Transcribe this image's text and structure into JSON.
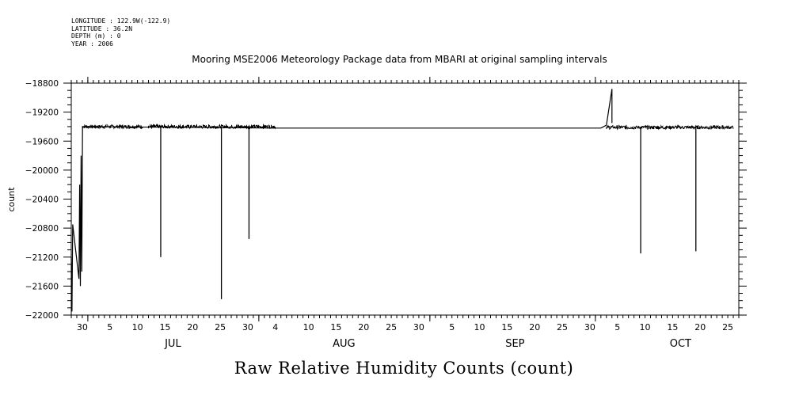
{
  "meta_lines": [
    "LONGITUDE : 122.9W(-122.9)",
    "LATITUDE : 36.2N",
    "DEPTH (m) : 0",
    "YEAR : 2006"
  ],
  "chart_data": {
    "type": "line",
    "title": "Mooring MSE2006 Meteorology Package data from MBARI at original sampling intervals",
    "xlabel": "Raw Relative Humidity Counts (count)",
    "ylabel": "count",
    "ylim": [
      -22000,
      -18800
    ],
    "yticks": [
      -18800,
      -19200,
      -19600,
      -20000,
      -20400,
      -20800,
      -21200,
      -21600,
      -22000
    ],
    "x_tick_labels": [
      {
        "date": "2006-06-30",
        "label": "30"
      },
      {
        "date": "2006-07-05",
        "label": "5"
      },
      {
        "date": "2006-07-10",
        "label": "10"
      },
      {
        "date": "2006-07-15",
        "label": "15"
      },
      {
        "date": "2006-07-20",
        "label": "20"
      },
      {
        "date": "2006-07-25",
        "label": "25"
      },
      {
        "date": "2006-07-30",
        "label": "30"
      },
      {
        "date": "2006-08-04",
        "label": "4"
      },
      {
        "date": "2006-08-10",
        "label": "10"
      },
      {
        "date": "2006-08-15",
        "label": "15"
      },
      {
        "date": "2006-08-20",
        "label": "20"
      },
      {
        "date": "2006-08-25",
        "label": "25"
      },
      {
        "date": "2006-08-30",
        "label": "30"
      },
      {
        "date": "2006-09-05",
        "label": "5"
      },
      {
        "date": "2006-09-10",
        "label": "10"
      },
      {
        "date": "2006-09-15",
        "label": "15"
      },
      {
        "date": "2006-09-20",
        "label": "20"
      },
      {
        "date": "2006-09-25",
        "label": "25"
      },
      {
        "date": "2006-09-30",
        "label": "30"
      },
      {
        "date": "2006-10-05",
        "label": "5"
      },
      {
        "date": "2006-10-10",
        "label": "10"
      },
      {
        "date": "2006-10-15",
        "label": "15"
      },
      {
        "date": "2006-10-20",
        "label": "20"
      },
      {
        "date": "2006-10-25",
        "label": "25"
      }
    ],
    "month_labels": [
      {
        "date": "2006-07-16",
        "label": "JUL"
      },
      {
        "date": "2006-08-16",
        "label": "AUG"
      },
      {
        "date": "2006-09-16",
        "label": "SEP"
      },
      {
        "date": "2006-10-16",
        "label": "OCT"
      }
    ],
    "xlim": [
      "2006-06-28",
      "2006-10-27"
    ],
    "grid": false,
    "series": [
      {
        "noisy_segments": [
          {
            "start": "2006-06-30",
            "end": "2006-07-11",
            "value": -19400,
            "noise": 25
          },
          {
            "start": "2006-07-12",
            "end": "2006-08-04",
            "value": -19400,
            "noise": 25
          },
          {
            "start": "2006-10-03",
            "end": "2006-10-26",
            "value": -19410,
            "noise": 25
          }
        ],
        "points": [
          [
            "2006-06-28",
            -21200
          ],
          [
            "2006-06-28",
            -21950
          ],
          [
            "2006-06-28",
            -20750
          ],
          [
            "2006-06-29",
            -21500
          ],
          [
            "2006-06-29",
            -20200
          ],
          [
            "2006-06-29",
            -21600
          ],
          [
            "2006-06-29",
            -19800
          ],
          [
            "2006-06-29",
            -21400
          ],
          [
            "2006-06-29",
            -19400
          ],
          [
            "2006-08-04",
            -19420
          ],
          [
            "2006-09-05",
            -19420
          ],
          [
            "2006-10-02",
            -19420
          ],
          [
            "2006-10-03",
            -19380
          ],
          [
            "2006-10-04",
            -18880
          ],
          [
            "2006-10-04",
            -19350
          ]
        ],
        "spikes": [
          {
            "date": "2006-07-14",
            "value": -21200
          },
          {
            "date": "2006-07-25",
            "value": -21780
          },
          {
            "date": "2006-07-30",
            "value": -20950
          },
          {
            "date": "2006-10-09",
            "value": -21150
          },
          {
            "date": "2006-10-19",
            "value": -21120
          }
        ]
      }
    ]
  }
}
